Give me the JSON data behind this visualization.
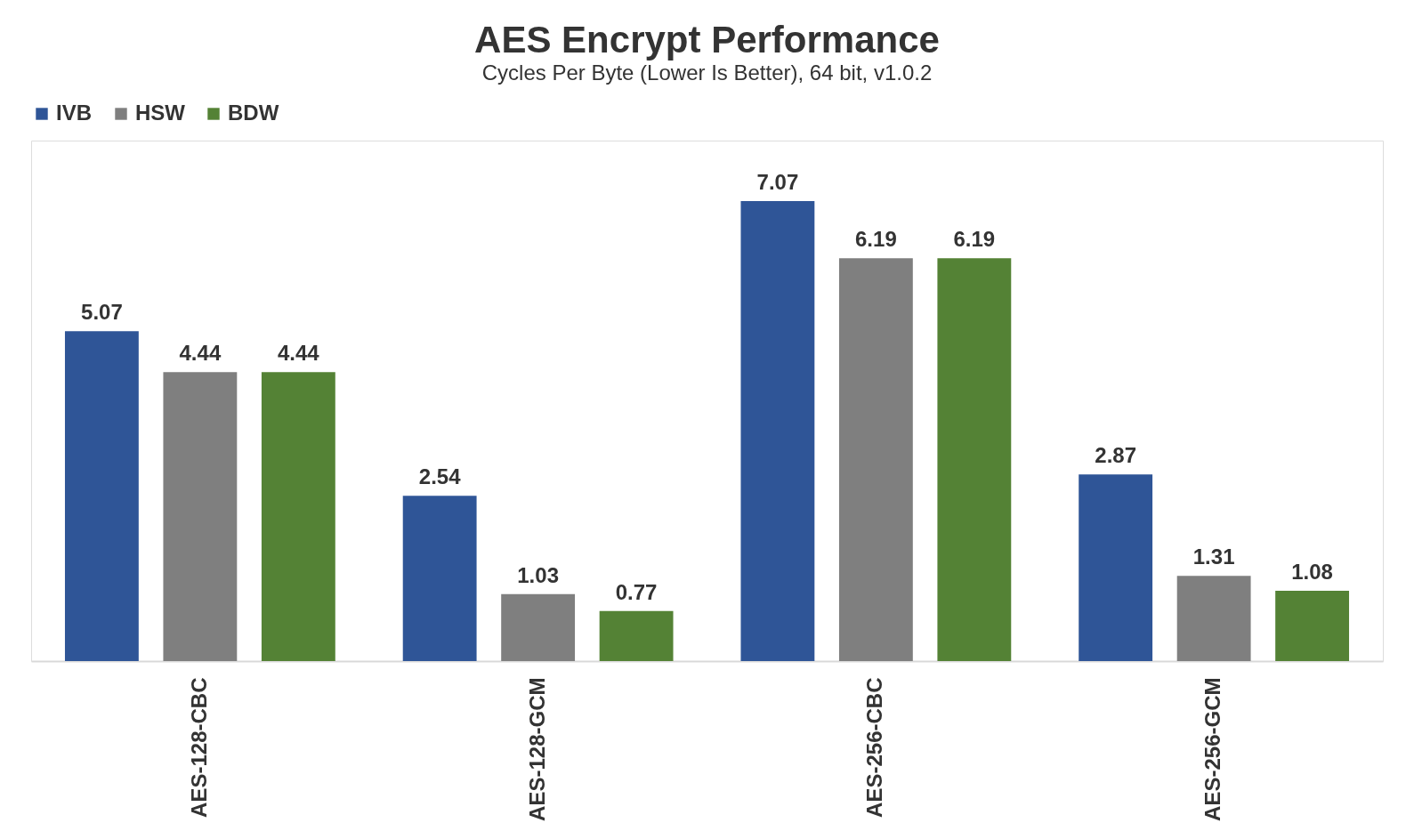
{
  "chart_data": {
    "type": "bar",
    "title": "AES Encrypt Performance",
    "subtitle": "Cycles Per Byte (Lower Is Better), 64 bit, v1.0.2",
    "categories": [
      "AES-128-CBC",
      "AES-128-GCM",
      "AES-256-CBC",
      "AES-256-GCM"
    ],
    "series": [
      {
        "name": "IVB",
        "color": "#2f5597",
        "values": [
          5.07,
          2.54,
          7.07,
          2.87
        ]
      },
      {
        "name": "HSW",
        "color": "#7f7f7f",
        "values": [
          4.44,
          1.03,
          6.19,
          1.31
        ]
      },
      {
        "name": "BDW",
        "color": "#548235",
        "values": [
          4.44,
          0.77,
          6.19,
          1.08
        ]
      }
    ],
    "data_labels": true,
    "legend": "top",
    "grid": false,
    "tick_labels": "x"
  }
}
